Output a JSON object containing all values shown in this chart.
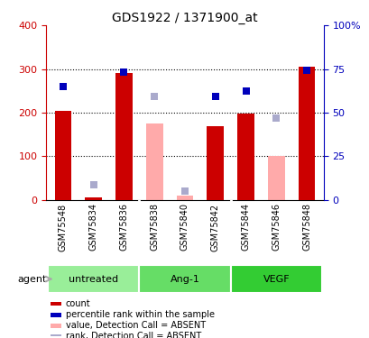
{
  "title": "GDS1922 / 1371900_at",
  "samples": [
    "GSM75548",
    "GSM75834",
    "GSM75836",
    "GSM75838",
    "GSM75840",
    "GSM75842",
    "GSM75844",
    "GSM75846",
    "GSM75848"
  ],
  "red_bar_heights": [
    205,
    5,
    290,
    0,
    0,
    168,
    197,
    0,
    305
  ],
  "pink_bar_heights": [
    0,
    0,
    0,
    175,
    10,
    0,
    0,
    100,
    0
  ],
  "blue_square_y": [
    260,
    0,
    292,
    0,
    0,
    237,
    250,
    0,
    298
  ],
  "light_blue_square_y": [
    0,
    35,
    0,
    237,
    20,
    0,
    0,
    188,
    0
  ],
  "red_bar_color": "#cc0000",
  "pink_bar_color": "#ffaaaa",
  "blue_square_color": "#0000bb",
  "light_blue_square_color": "#aaaacc",
  "ylim_left": [
    0,
    400
  ],
  "ylim_right": [
    0,
    100
  ],
  "yticks_left": [
    0,
    100,
    200,
    300,
    400
  ],
  "ytick_labels_right": [
    "0",
    "25",
    "50",
    "75",
    "100%"
  ],
  "groups": [
    {
      "label": "untreated",
      "indices": [
        0,
        1,
        2
      ],
      "color": "#99ee99"
    },
    {
      "label": "Ang-1",
      "indices": [
        3,
        4,
        5
      ],
      "color": "#66dd66"
    },
    {
      "label": "VEGF",
      "indices": [
        6,
        7,
        8
      ],
      "color": "#33cc33"
    }
  ],
  "agent_label": "agent",
  "legend_items": [
    {
      "label": "count",
      "color": "#cc0000"
    },
    {
      "label": "percentile rank within the sample",
      "color": "#0000bb"
    },
    {
      "label": "value, Detection Call = ABSENT",
      "color": "#ffaaaa"
    },
    {
      "label": "rank, Detection Call = ABSENT",
      "color": "#aaaacc"
    }
  ],
  "bar_width": 0.55,
  "tick_area_bg": "#cccccc",
  "background_color": "#ffffff"
}
